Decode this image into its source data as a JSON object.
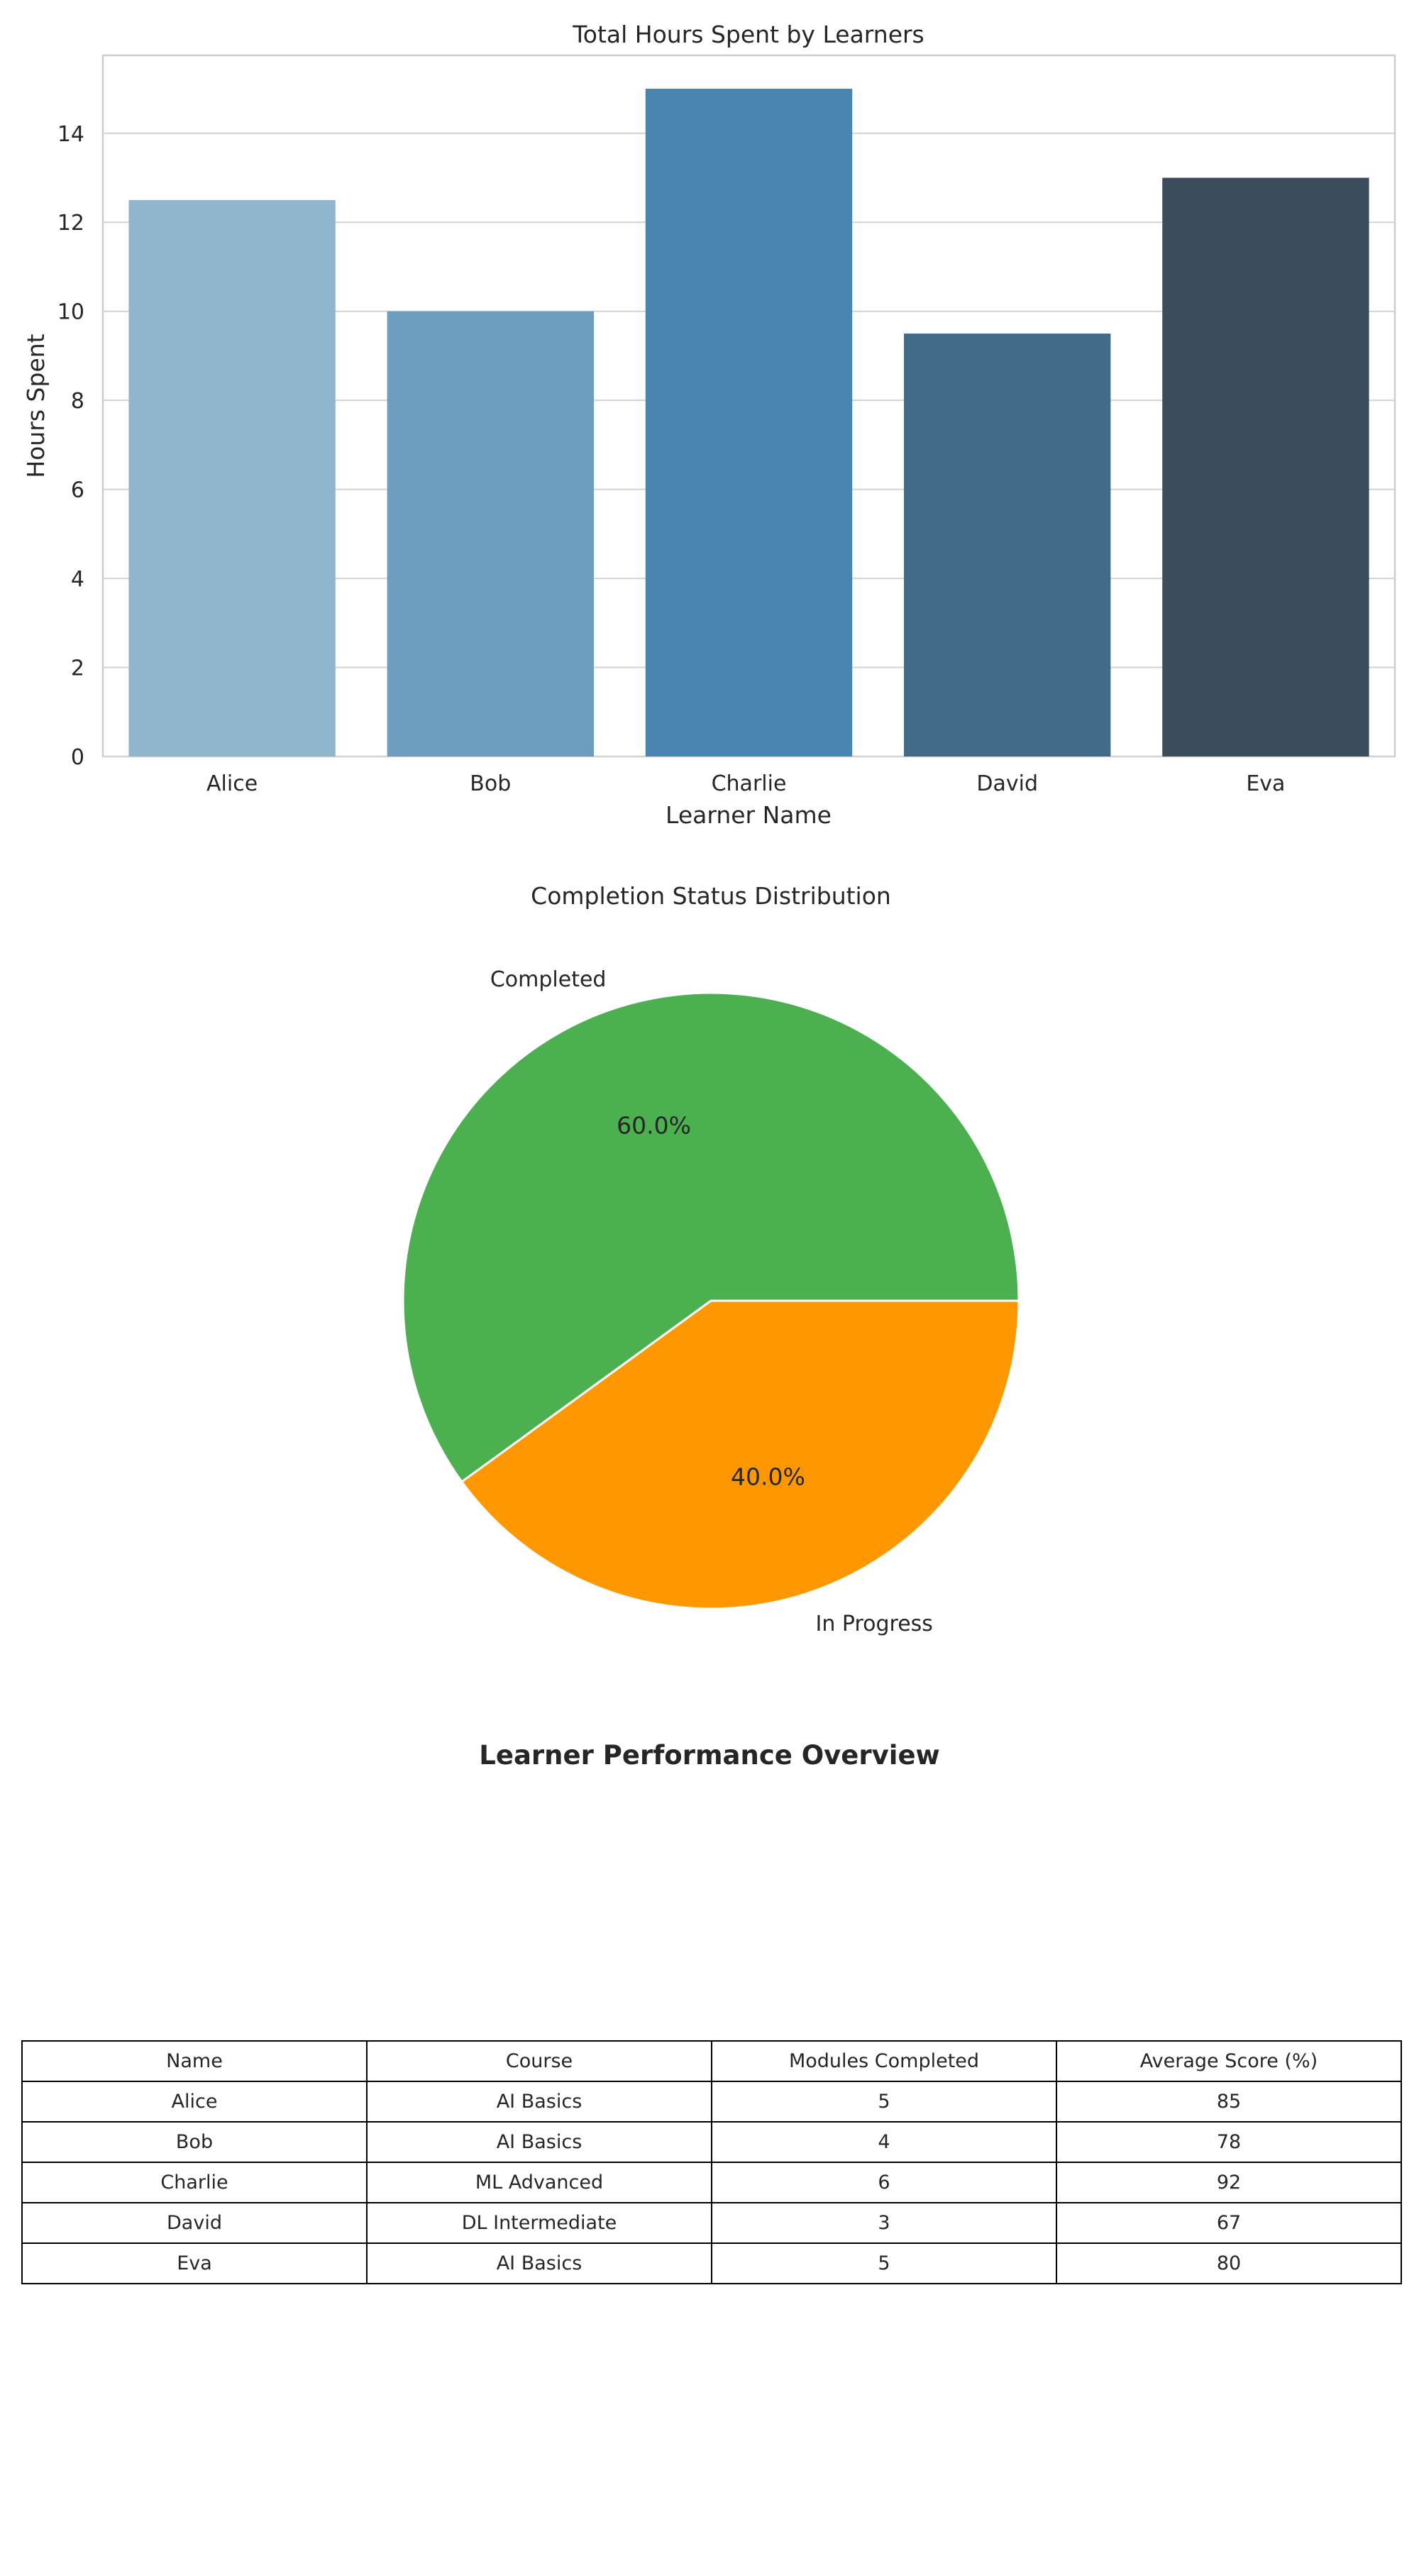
{
  "charts": [
    {
      "type": "bar",
      "title": "Total Hours Spent by Learners",
      "xlabel": "Learner Name",
      "ylabel": "Hours Spent",
      "categories": [
        "Alice",
        "Bob",
        "Charlie",
        "David",
        "Eva"
      ],
      "values": [
        12.5,
        10,
        15,
        9.5,
        13
      ],
      "ylim": [
        0,
        15.75
      ],
      "yticks": [
        0,
        2,
        4,
        6,
        8,
        10,
        12,
        14
      ],
      "colors": [
        "#93b6cf",
        "#6d9ec0",
        "#4a84b0",
        "#426b89",
        "#3b4d5c"
      ],
      "grid": true
    },
    {
      "type": "pie",
      "title": "Completion Status Distribution",
      "slices": [
        {
          "label": "Completed",
          "value": 60.0,
          "pct_label": "60.0%",
          "color": "#4caf50"
        },
        {
          "label": "In Progress",
          "value": 40.0,
          "pct_label": "40.0%",
          "color": "#ff9800"
        }
      ]
    },
    {
      "type": "table",
      "title": "Learner Performance Overview",
      "columns": [
        "Name",
        "Course",
        "Modules Completed",
        "Average Score (%)"
      ],
      "rows": [
        [
          "Alice",
          "AI Basics",
          "5",
          "85"
        ],
        [
          "Bob",
          "AI Basics",
          "4",
          "78"
        ],
        [
          "Charlie",
          "ML Advanced",
          "6",
          "92"
        ],
        [
          "David",
          "DL Intermediate",
          "3",
          "67"
        ],
        [
          "Eva",
          "AI Basics",
          "5",
          "80"
        ]
      ]
    }
  ]
}
